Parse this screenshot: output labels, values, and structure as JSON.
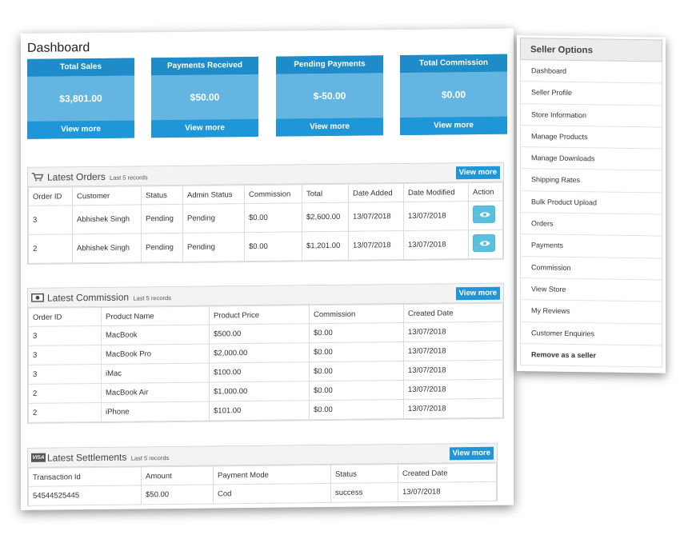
{
  "page": {
    "title": "Dashboard"
  },
  "stats": [
    {
      "label": "Total Sales",
      "value": "$3,801.00",
      "more": "View more"
    },
    {
      "label": "Payments Received",
      "value": "$50.00",
      "more": "View more"
    },
    {
      "label": "Pending Payments",
      "value": "$-50.00",
      "more": "View more"
    },
    {
      "label": "Total Commission",
      "value": "$0.00",
      "more": "View more"
    }
  ],
  "orders": {
    "title": "Latest Orders",
    "subtitle": "Last 5 records",
    "view_more": "View more",
    "columns": [
      "Order ID",
      "Customer",
      "Status",
      "Admin Status",
      "Commission",
      "Total",
      "Date Added",
      "Date Modified",
      "Action"
    ],
    "rows": [
      [
        "3",
        "Abhishek Singh",
        "Pending",
        "Pending",
        "$0.00",
        "$2,600.00",
        "13/07/2018",
        "13/07/2018"
      ],
      [
        "2",
        "Abhishek Singh",
        "Pending",
        "Pending",
        "$0.00",
        "$1,201.00",
        "13/07/2018",
        "13/07/2018"
      ]
    ]
  },
  "commission": {
    "title": "Latest Commission",
    "subtitle": "Last 5 records",
    "view_more": "View more",
    "columns": [
      "Order ID",
      "Product Name",
      "Product Price",
      "Commission",
      "Created Date"
    ],
    "rows": [
      [
        "3",
        "MacBook",
        "$500.00",
        "$0.00",
        "13/07/2018"
      ],
      [
        "3",
        "MacBook Pro",
        "$2,000.00",
        "$0.00",
        "13/07/2018"
      ],
      [
        "3",
        "iMac",
        "$100.00",
        "$0.00",
        "13/07/2018"
      ],
      [
        "2",
        "MacBook Air",
        "$1,000.00",
        "$0.00",
        "13/07/2018"
      ],
      [
        "2",
        "iPhone",
        "$101.00",
        "$0.00",
        "13/07/2018"
      ]
    ]
  },
  "settlements": {
    "title": "Latest Settlements",
    "subtitle": "Last 5 records",
    "view_more": "View more",
    "icon_text": "VISA",
    "columns": [
      "Transaction Id",
      "Amount",
      "Payment Mode",
      "Status",
      "Created Date"
    ],
    "rows": [
      [
        "54544525445",
        "$50.00",
        "Cod",
        "success",
        "13/07/2018"
      ]
    ]
  },
  "sidebar": {
    "title": "Seller Options",
    "items": [
      "Dashboard",
      "Seller Profile",
      "Store Information",
      "Manage Products",
      "Manage Downloads",
      "Shipping Rates",
      "Bulk Product Upload",
      "Orders",
      "Payments",
      "Commission",
      "View Store",
      "My Reviews",
      "Customer Enquiries",
      "Remove as a seller"
    ]
  },
  "colors": {
    "accent": "#1e96d8",
    "stat_body": "#64b5e2",
    "action_button": "#5bc0de"
  }
}
